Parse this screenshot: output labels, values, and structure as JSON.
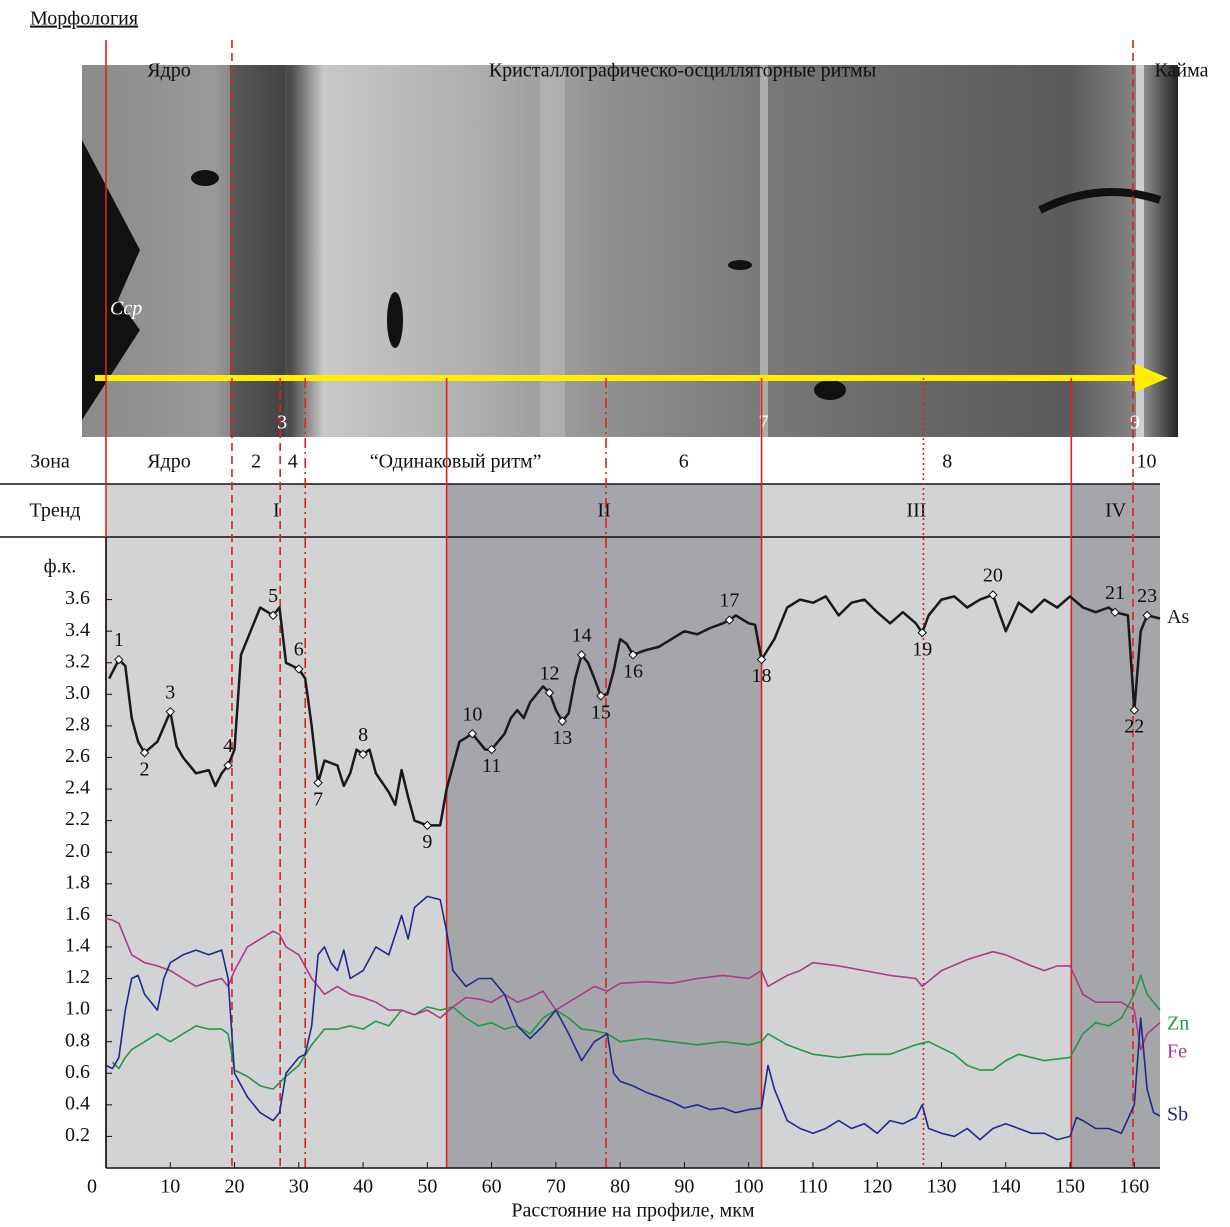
{
  "chart_data": {
    "type": "line",
    "morphology": {
      "title": "Морфология",
      "names": [
        "Ядро",
        "Кристаллографическо-осцилляторные ритмы",
        "Кайма"
      ],
      "edges": [
        0,
        19.6,
        159.8
      ],
      "photo_label": "Ccp",
      "boundary_names": [
        "3",
        "7",
        "9"
      ],
      "boundary_x": [
        27.1,
        102,
        159.8
      ]
    },
    "zones": {
      "label": "Зона",
      "names": [
        "Ядро",
        "2",
        "4",
        "“Одинаковый ритм”",
        "6",
        "8",
        "10"
      ],
      "edges": [
        0,
        19.6,
        27.1,
        31,
        77.8,
        102,
        159.8,
        164
      ]
    },
    "trends": {
      "label": "Тренд",
      "names": [
        "I",
        "II",
        "III",
        "IV"
      ],
      "edges": [
        0,
        53,
        102,
        150.2,
        164
      ],
      "colors": [
        "#d2d3d5",
        "#a5a6a9",
        "#d2d3d5",
        "#a5a6a9"
      ]
    },
    "vlines": [
      {
        "x": 0,
        "style": "solid"
      },
      {
        "x": 19.6,
        "style": "dashed"
      },
      {
        "x": 27.1,
        "style": "dashed"
      },
      {
        "x": 31,
        "style": "dashdot"
      },
      {
        "x": 53,
        "style": "solid"
      },
      {
        "x": 77.8,
        "style": "dashdot"
      },
      {
        "x": 102,
        "style": "solid"
      },
      {
        "x": 127.2,
        "style": "dotted"
      },
      {
        "x": 150.2,
        "style": "solid"
      },
      {
        "x": 159.8,
        "style": "dashed"
      }
    ],
    "ylabel": "ф.к.",
    "xlabel": "Расстояние на профиле, мкм",
    "xlim": [
      0,
      164
    ],
    "ylim": [
      0,
      3.8
    ],
    "xticks": [
      0,
      10,
      20,
      30,
      40,
      50,
      60,
      70,
      80,
      90,
      100,
      110,
      120,
      130,
      140,
      150,
      160
    ],
    "yticks": [
      0.2,
      0.4,
      0.6,
      0.8,
      {
        "value": 1,
        "label": "1.0"
      },
      1.2,
      1.4,
      1.6,
      1.8,
      {
        "value": 2,
        "label": "2.0"
      },
      2.2,
      2.4,
      2.6,
      2.8,
      {
        "value": 3,
        "label": "3.0"
      },
      3.2,
      3.4,
      3.6
    ],
    "series": [
      {
        "name": "As",
        "color": "#1a1a1a",
        "x": [
          0.5,
          2,
          3,
          4,
          5,
          6,
          8,
          10,
          11,
          12,
          14,
          16,
          17,
          18,
          19,
          20,
          21,
          22,
          24,
          26,
          27,
          28,
          30,
          31,
          32,
          33,
          34,
          36,
          37,
          38,
          39,
          40,
          41,
          42,
          44,
          45,
          46,
          47,
          48,
          50,
          52,
          53,
          54,
          55,
          57,
          59,
          60,
          62,
          63,
          64,
          65,
          66,
          68,
          69,
          70,
          71,
          72,
          73,
          74,
          75,
          76,
          77,
          78,
          79,
          80,
          81,
          82,
          84,
          86,
          88,
          90,
          92,
          94,
          96,
          97,
          98,
          100,
          101,
          102,
          104,
          106,
          108,
          110,
          112,
          114,
          116,
          118,
          120,
          122,
          124,
          126,
          127,
          128,
          130,
          132,
          134,
          136,
          138,
          140,
          142,
          144,
          146,
          148,
          150,
          152,
          154,
          156,
          157,
          159,
          160,
          161,
          162,
          164
        ],
        "values": [
          3.1,
          3.22,
          3.18,
          2.85,
          2.7,
          2.63,
          2.7,
          2.89,
          2.67,
          2.6,
          2.5,
          2.52,
          2.42,
          2.5,
          2.55,
          2.65,
          3.25,
          3.35,
          3.55,
          3.5,
          3.55,
          3.2,
          3.16,
          3.1,
          2.8,
          2.44,
          2.58,
          2.55,
          2.42,
          2.5,
          2.65,
          2.62,
          2.65,
          2.5,
          2.38,
          2.3,
          2.52,
          2.35,
          2.2,
          2.17,
          2.17,
          2.4,
          2.55,
          2.7,
          2.75,
          2.65,
          2.65,
          2.75,
          2.85,
          2.9,
          2.85,
          2.95,
          3.05,
          3.01,
          2.9,
          2.83,
          2.88,
          3.1,
          3.25,
          3.2,
          3.1,
          2.99,
          3.0,
          3.15,
          3.35,
          3.32,
          3.25,
          3.28,
          3.3,
          3.35,
          3.4,
          3.38,
          3.42,
          3.45,
          3.47,
          3.5,
          3.45,
          3.44,
          3.22,
          3.35,
          3.55,
          3.6,
          3.58,
          3.62,
          3.5,
          3.58,
          3.6,
          3.52,
          3.45,
          3.52,
          3.45,
          3.39,
          3.5,
          3.6,
          3.62,
          3.55,
          3.6,
          3.63,
          3.4,
          3.58,
          3.52,
          3.6,
          3.55,
          3.62,
          3.55,
          3.52,
          3.55,
          3.52,
          3.5,
          2.9,
          3.4,
          3.5,
          3.48
        ],
        "point_labels": [
          null,
          "1",
          null,
          null,
          null,
          "2",
          null,
          "3",
          null,
          null,
          null,
          null,
          null,
          null,
          "4",
          null,
          null,
          null,
          null,
          "5",
          null,
          null,
          "6",
          null,
          null,
          "7",
          null,
          null,
          null,
          null,
          null,
          "8",
          null,
          null,
          null,
          null,
          null,
          null,
          null,
          "9",
          null,
          null,
          null,
          null,
          "10",
          null,
          "11",
          null,
          null,
          null,
          null,
          null,
          null,
          "12",
          null,
          "13",
          null,
          null,
          "14",
          null,
          null,
          "15",
          null,
          null,
          null,
          null,
          "16",
          null,
          null,
          null,
          null,
          null,
          null,
          null,
          "17",
          null,
          null,
          null,
          "18",
          null,
          null,
          null,
          null,
          null,
          null,
          null,
          null,
          null,
          null,
          null,
          null,
          "19",
          null,
          null,
          null,
          null,
          null,
          "20",
          null,
          null,
          null,
          null,
          null,
          null,
          null,
          null,
          null,
          "21",
          null,
          "22",
          null,
          "23",
          null
        ]
      },
      {
        "name": "Zn",
        "color": "#1f9a45",
        "x": [
          1,
          2,
          3,
          4,
          6,
          8,
          10,
          12,
          14,
          16,
          18,
          19,
          20,
          22,
          24,
          26,
          28,
          30,
          32,
          34,
          36,
          38,
          40,
          42,
          44,
          46,
          48,
          50,
          52,
          54,
          56,
          58,
          60,
          62,
          64,
          66,
          68,
          70,
          72,
          74,
          76,
          78,
          80,
          84,
          88,
          92,
          96,
          100,
          102,
          103,
          106,
          108,
          110,
          114,
          118,
          122,
          126,
          128,
          132,
          134,
          136,
          138,
          140,
          142,
          146,
          150,
          152,
          154,
          156,
          158,
          160,
          161,
          162,
          164
        ],
        "values": [
          0.67,
          0.63,
          0.7,
          0.75,
          0.8,
          0.85,
          0.8,
          0.85,
          0.9,
          0.88,
          0.88,
          0.85,
          0.62,
          0.58,
          0.52,
          0.5,
          0.58,
          0.65,
          0.78,
          0.88,
          0.88,
          0.9,
          0.88,
          0.93,
          0.9,
          1.0,
          0.97,
          1.02,
          1.0,
          1.02,
          0.95,
          0.9,
          0.92,
          0.88,
          0.9,
          0.85,
          0.95,
          1.0,
          0.95,
          0.88,
          0.87,
          0.85,
          0.8,
          0.82,
          0.8,
          0.78,
          0.8,
          0.78,
          0.8,
          0.85,
          0.78,
          0.75,
          0.72,
          0.7,
          0.72,
          0.72,
          0.78,
          0.8,
          0.72,
          0.65,
          0.62,
          0.62,
          0.68,
          0.72,
          0.68,
          0.7,
          0.85,
          0.92,
          0.9,
          0.95,
          1.1,
          1.22,
          1.1,
          1.0
        ]
      },
      {
        "name": "Fe",
        "color": "#b0398a",
        "x": [
          0,
          1,
          2,
          4,
          6,
          8,
          10,
          12,
          14,
          16,
          18,
          19,
          20,
          22,
          24,
          26,
          27,
          28,
          30,
          32,
          34,
          36,
          38,
          40,
          42,
          44,
          46,
          48,
          50,
          52,
          54,
          56,
          58,
          60,
          62,
          64,
          66,
          68,
          70,
          72,
          74,
          76,
          78,
          80,
          84,
          88,
          92,
          96,
          100,
          102,
          103,
          106,
          108,
          110,
          114,
          118,
          122,
          126,
          127,
          130,
          134,
          138,
          140,
          144,
          146,
          148,
          150,
          152,
          154,
          156,
          158,
          160,
          161,
          162,
          164
        ],
        "values": [
          1.58,
          1.57,
          1.55,
          1.35,
          1.3,
          1.28,
          1.25,
          1.2,
          1.15,
          1.18,
          1.2,
          1.15,
          1.25,
          1.4,
          1.45,
          1.5,
          1.48,
          1.4,
          1.35,
          1.2,
          1.1,
          1.15,
          1.1,
          1.08,
          1.05,
          1.0,
          1.0,
          0.97,
          1.0,
          0.95,
          1.02,
          1.08,
          1.07,
          1.05,
          1.1,
          1.05,
          1.08,
          1.12,
          1.0,
          1.05,
          1.1,
          1.15,
          1.12,
          1.17,
          1.18,
          1.17,
          1.2,
          1.22,
          1.2,
          1.25,
          1.15,
          1.22,
          1.25,
          1.3,
          1.28,
          1.25,
          1.22,
          1.2,
          1.15,
          1.25,
          1.32,
          1.37,
          1.35,
          1.28,
          1.25,
          1.28,
          1.28,
          1.1,
          1.05,
          1.05,
          1.05,
          1.0,
          0.75,
          0.85,
          0.92
        ]
      },
      {
        "name": "Sb",
        "color": "#1e2a8e",
        "x": [
          0,
          1,
          2,
          3,
          4,
          5,
          6,
          8,
          9,
          10,
          12,
          14,
          16,
          18,
          19,
          20,
          22,
          24,
          26,
          27,
          28,
          30,
          31,
          32,
          33,
          34,
          35,
          36,
          37,
          38,
          40,
          42,
          44,
          46,
          47,
          48,
          50,
          52,
          53,
          54,
          56,
          58,
          60,
          62,
          64,
          66,
          68,
          70,
          72,
          74,
          76,
          78,
          79,
          80,
          82,
          84,
          86,
          88,
          90,
          92,
          94,
          96,
          98,
          100,
          102,
          103,
          104,
          106,
          108,
          110,
          112,
          114,
          116,
          118,
          120,
          122,
          124,
          126,
          127,
          128,
          130,
          132,
          134,
          136,
          138,
          140,
          142,
          144,
          146,
          148,
          150,
          151,
          152,
          154,
          156,
          158,
          160,
          161,
          162,
          163,
          164
        ],
        "values": [
          0.65,
          0.63,
          0.7,
          1.0,
          1.2,
          1.22,
          1.1,
          1.0,
          1.2,
          1.3,
          1.35,
          1.38,
          1.35,
          1.38,
          1.2,
          0.6,
          0.45,
          0.35,
          0.3,
          0.35,
          0.6,
          0.7,
          0.72,
          0.9,
          1.35,
          1.4,
          1.3,
          1.25,
          1.38,
          1.2,
          1.25,
          1.4,
          1.35,
          1.6,
          1.45,
          1.65,
          1.72,
          1.7,
          1.5,
          1.25,
          1.15,
          1.2,
          1.2,
          1.1,
          0.9,
          0.82,
          0.9,
          1.0,
          0.85,
          0.68,
          0.8,
          0.85,
          0.6,
          0.55,
          0.52,
          0.48,
          0.45,
          0.42,
          0.38,
          0.4,
          0.37,
          0.38,
          0.35,
          0.37,
          0.38,
          0.65,
          0.5,
          0.3,
          0.25,
          0.22,
          0.25,
          0.3,
          0.25,
          0.28,
          0.22,
          0.3,
          0.28,
          0.32,
          0.4,
          0.25,
          0.22,
          0.2,
          0.25,
          0.18,
          0.25,
          0.28,
          0.25,
          0.22,
          0.22,
          0.18,
          0.2,
          0.32,
          0.3,
          0.25,
          0.25,
          0.22,
          0.4,
          0.95,
          0.5,
          0.35,
          0.33
        ]
      }
    ]
  }
}
